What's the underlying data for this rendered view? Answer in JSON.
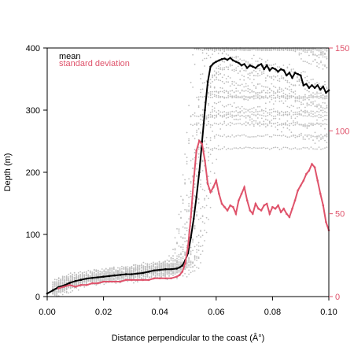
{
  "chart_data": {
    "type": "line",
    "xlabel": "Distance perpendicular to the coast (Â°)",
    "ylabel": "Depth (m)",
    "xlim": [
      0,
      0.1
    ],
    "ylim": [
      0,
      400
    ],
    "y2lim": [
      0,
      150
    ],
    "xticks": [
      "0.00",
      "0.02",
      "0.04",
      "0.06",
      "0.08",
      "0.10"
    ],
    "yticks": [
      "0",
      "100",
      "200",
      "300",
      "400"
    ],
    "y2ticks": [
      "0",
      "50",
      "100",
      "150"
    ],
    "legend": {
      "position": "top-left",
      "entries": [
        "mean",
        "standard deviation"
      ]
    },
    "colors": {
      "mean": "#000000",
      "sd": "#df536b",
      "scatter": "#bebebe",
      "axis": "#000000"
    },
    "series": [
      {
        "name": "mean",
        "axis": "left",
        "x": [
          0.0,
          0.002,
          0.004,
          0.006,
          0.008,
          0.01,
          0.012,
          0.014,
          0.016,
          0.018,
          0.02,
          0.022,
          0.024,
          0.026,
          0.028,
          0.03,
          0.032,
          0.034,
          0.036,
          0.038,
          0.04,
          0.042,
          0.044,
          0.046,
          0.047,
          0.048,
          0.049,
          0.05,
          0.051,
          0.052,
          0.053,
          0.054,
          0.055,
          0.056,
          0.057,
          0.058,
          0.059,
          0.06,
          0.061,
          0.062,
          0.063,
          0.064,
          0.065,
          0.066,
          0.067,
          0.068,
          0.069,
          0.07,
          0.071,
          0.072,
          0.073,
          0.074,
          0.075,
          0.076,
          0.077,
          0.078,
          0.079,
          0.08,
          0.081,
          0.082,
          0.083,
          0.084,
          0.085,
          0.086,
          0.087,
          0.088,
          0.089,
          0.09,
          0.091,
          0.092,
          0.093,
          0.094,
          0.095,
          0.096,
          0.097,
          0.098,
          0.099,
          0.1
        ],
        "y": [
          5,
          10,
          15,
          18,
          22,
          25,
          27,
          29,
          30,
          31,
          32,
          33,
          34,
          35,
          36,
          36,
          37,
          38,
          40,
          42,
          43,
          44,
          44,
          45,
          47,
          50,
          58,
          70,
          95,
          125,
          160,
          200,
          250,
          300,
          345,
          370,
          375,
          378,
          380,
          382,
          383,
          381,
          384,
          380,
          378,
          376,
          372,
          374,
          368,
          372,
          370,
          368,
          372,
          374,
          366,
          372,
          364,
          368,
          366,
          362,
          366,
          364,
          356,
          360,
          352,
          360,
          358,
          356,
          340,
          342,
          336,
          340,
          336,
          340,
          333,
          338,
          328,
          332
        ]
      },
      {
        "name": "standard deviation",
        "axis": "right",
        "x": [
          0.004,
          0.006,
          0.008,
          0.01,
          0.012,
          0.014,
          0.016,
          0.018,
          0.02,
          0.022,
          0.024,
          0.026,
          0.028,
          0.03,
          0.032,
          0.034,
          0.036,
          0.038,
          0.04,
          0.042,
          0.044,
          0.046,
          0.047,
          0.048,
          0.049,
          0.05,
          0.051,
          0.052,
          0.053,
          0.054,
          0.055,
          0.056,
          0.057,
          0.058,
          0.059,
          0.06,
          0.061,
          0.062,
          0.063,
          0.064,
          0.065,
          0.066,
          0.067,
          0.068,
          0.069,
          0.07,
          0.071,
          0.072,
          0.073,
          0.074,
          0.075,
          0.076,
          0.077,
          0.078,
          0.079,
          0.08,
          0.081,
          0.082,
          0.083,
          0.084,
          0.085,
          0.086,
          0.087,
          0.088,
          0.089,
          0.09,
          0.091,
          0.092,
          0.093,
          0.094,
          0.095,
          0.096,
          0.097,
          0.098,
          0.099,
          0.1
        ],
        "y": [
          5,
          6,
          7,
          6,
          7,
          7,
          8,
          8,
          9,
          9,
          9,
          9,
          10,
          10,
          10,
          10,
          10,
          11,
          11,
          11,
          11,
          12,
          13,
          15,
          20,
          30,
          48,
          70,
          88,
          94,
          92,
          82,
          68,
          63,
          66,
          70,
          62,
          56,
          54,
          52,
          55,
          54,
          50,
          58,
          62,
          66,
          58,
          52,
          50,
          56,
          53,
          52,
          55,
          56,
          50,
          54,
          53,
          55,
          51,
          53,
          50,
          48,
          53,
          58,
          64,
          67,
          70,
          74,
          76,
          80,
          78,
          70,
          62,
          55,
          45,
          40
        ]
      }
    ],
    "scatter_note": ""
  }
}
